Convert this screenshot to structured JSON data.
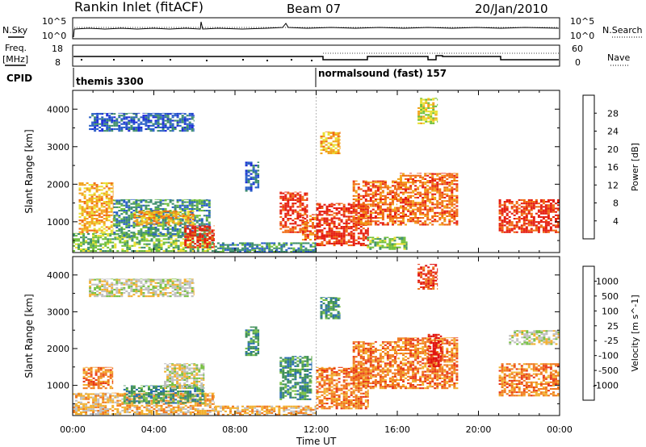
{
  "header": {
    "station": "Rankin Inlet (fitACF)",
    "beam": "Beam 07",
    "date": "20/Jan/2010"
  },
  "strip_panels": {
    "nsky": {
      "label": "N.Sky",
      "ticks": [
        "10^5",
        "10^0"
      ]
    },
    "nsearch": {
      "label": "N.Search",
      "ticks": [
        "10^5",
        "10^0"
      ]
    },
    "freq": {
      "label_line1": "Freq.",
      "label_line2": "[MHz]",
      "ticks": [
        "18",
        "8"
      ]
    },
    "nave": {
      "label": "Nave",
      "ticks": [
        "60",
        "0"
      ]
    },
    "cpid": {
      "label": "CPID",
      "modes": [
        "themis 3300",
        "normalsound (fast) 157"
      ]
    }
  },
  "chart_data": [
    {
      "type": "heatmap",
      "title": "",
      "xlabel": "",
      "ylabel": "Slant Range [km]",
      "x_ticks": [
        "00:00",
        "04:00",
        "08:00",
        "12:00",
        "16:00",
        "20:00",
        "00:00"
      ],
      "xlim_hours": [
        0,
        24
      ],
      "y_ticks": [
        "1000",
        "2000",
        "3000",
        "4000"
      ],
      "ylim_km": [
        180,
        4500
      ],
      "colorbar": {
        "label": "Power [dB]",
        "ticks": [
          "4",
          "8",
          "12",
          "16",
          "20",
          "24",
          "28"
        ],
        "colors": [
          "#1a2ad6",
          "#2a5fc8",
          "#3f8f6c",
          "#6fbe3a",
          "#e8e030",
          "#f2a21a",
          "#f06a12",
          "#e51e10"
        ]
      },
      "regions": [
        {
          "t0": 0.0,
          "t1": 7.0,
          "r0": 200,
          "r1": 700,
          "value": 3
        },
        {
          "t0": 0.3,
          "t1": 2.0,
          "r0": 700,
          "r1": 2050,
          "value": 5
        },
        {
          "t0": 2.0,
          "t1": 6.8,
          "r0": 600,
          "r1": 1600,
          "value": 2
        },
        {
          "t0": 3.0,
          "t1": 6.0,
          "r0": 900,
          "r1": 1300,
          "value": 5
        },
        {
          "t0": 5.5,
          "t1": 7.0,
          "r0": 300,
          "r1": 900,
          "value": 7
        },
        {
          "t0": 7.0,
          "t1": 12.0,
          "r0": 180,
          "r1": 450,
          "value": 2
        },
        {
          "t0": 10.2,
          "t1": 11.6,
          "r0": 700,
          "r1": 1800,
          "value": 7
        },
        {
          "t0": 11.3,
          "t1": 12.0,
          "r0": 500,
          "r1": 1200,
          "value": 6
        },
        {
          "t0": 12.0,
          "t1": 14.6,
          "r0": 350,
          "r1": 1500,
          "value": 7
        },
        {
          "t0": 13.8,
          "t1": 16.0,
          "r0": 900,
          "r1": 2100,
          "value": 6
        },
        {
          "t0": 16.0,
          "t1": 19.0,
          "r0": 900,
          "r1": 2300,
          "value": 6
        },
        {
          "t0": 14.5,
          "t1": 16.5,
          "r0": 250,
          "r1": 600,
          "value": 3
        },
        {
          "t0": 21.0,
          "t1": 24.0,
          "r0": 700,
          "r1": 1600,
          "value": 7
        },
        {
          "t0": 12.2,
          "t1": 13.2,
          "r0": 2800,
          "r1": 3400,
          "value": 5
        },
        {
          "t0": 17.0,
          "t1": 18.0,
          "r0": 3600,
          "r1": 4300,
          "value": 4
        },
        {
          "t0": 0.8,
          "t1": 6.0,
          "r0": 3400,
          "r1": 3900,
          "value": 1
        },
        {
          "t0": 8.5,
          "t1": 9.2,
          "r0": 1800,
          "r1": 2600,
          "value": 1
        }
      ]
    },
    {
      "type": "heatmap",
      "title": "",
      "xlabel": "Time UT",
      "ylabel": "Slant Range [km]",
      "x_ticks": [
        "00:00",
        "04:00",
        "08:00",
        "12:00",
        "16:00",
        "20:00",
        "00:00"
      ],
      "xlim_hours": [
        0,
        24
      ],
      "y_ticks": [
        "1000",
        "2000",
        "3000",
        "4000"
      ],
      "ylim_km": [
        180,
        4500
      ],
      "colorbar": {
        "label": "Velocity [m s^-1]",
        "ticks": [
          "1000",
          "500",
          "100",
          "25",
          "-25",
          "-100",
          "-500",
          "-1000"
        ],
        "colors": [
          "#1f3ab0",
          "#2c6fb0",
          "#3f8f5a",
          "#78c043",
          "#c0c0c0",
          "#f2b030",
          "#f07a20",
          "#e83a18",
          "#e01010"
        ]
      },
      "regions": [
        {
          "t0": 0.0,
          "t1": 7.0,
          "r0": 200,
          "r1": 800,
          "value": 5
        },
        {
          "t0": 2.5,
          "t1": 6.5,
          "r0": 500,
          "r1": 1000,
          "value": 2
        },
        {
          "t0": 4.5,
          "t1": 6.5,
          "r0": 900,
          "r1": 1600,
          "value": 4
        },
        {
          "t0": 0.5,
          "t1": 2.0,
          "r0": 900,
          "r1": 1500,
          "value": 6
        },
        {
          "t0": 7.0,
          "t1": 12.0,
          "r0": 180,
          "r1": 450,
          "value": 5
        },
        {
          "t0": 10.2,
          "t1": 11.8,
          "r0": 600,
          "r1": 1800,
          "value": 2
        },
        {
          "t0": 12.0,
          "t1": 14.6,
          "r0": 350,
          "r1": 1500,
          "value": 6
        },
        {
          "t0": 13.8,
          "t1": 16.0,
          "r0": 900,
          "r1": 2200,
          "value": 6
        },
        {
          "t0": 16.0,
          "t1": 19.0,
          "r0": 900,
          "r1": 2300,
          "value": 6
        },
        {
          "t0": 17.5,
          "t1": 18.2,
          "r0": 1500,
          "r1": 2400,
          "value": 8
        },
        {
          "t0": 21.0,
          "t1": 24.0,
          "r0": 700,
          "r1": 1600,
          "value": 6
        },
        {
          "t0": 21.5,
          "t1": 24.0,
          "r0": 2100,
          "r1": 2500,
          "value": 4
        },
        {
          "t0": 12.2,
          "t1": 13.2,
          "r0": 2800,
          "r1": 3400,
          "value": 2
        },
        {
          "t0": 17.0,
          "t1": 18.0,
          "r0": 3600,
          "r1": 4300,
          "value": 7
        },
        {
          "t0": 0.8,
          "t1": 6.0,
          "r0": 3400,
          "r1": 3900,
          "value": 4
        },
        {
          "t0": 8.5,
          "t1": 9.2,
          "r0": 1800,
          "r1": 2600,
          "value": 2
        }
      ]
    }
  ]
}
